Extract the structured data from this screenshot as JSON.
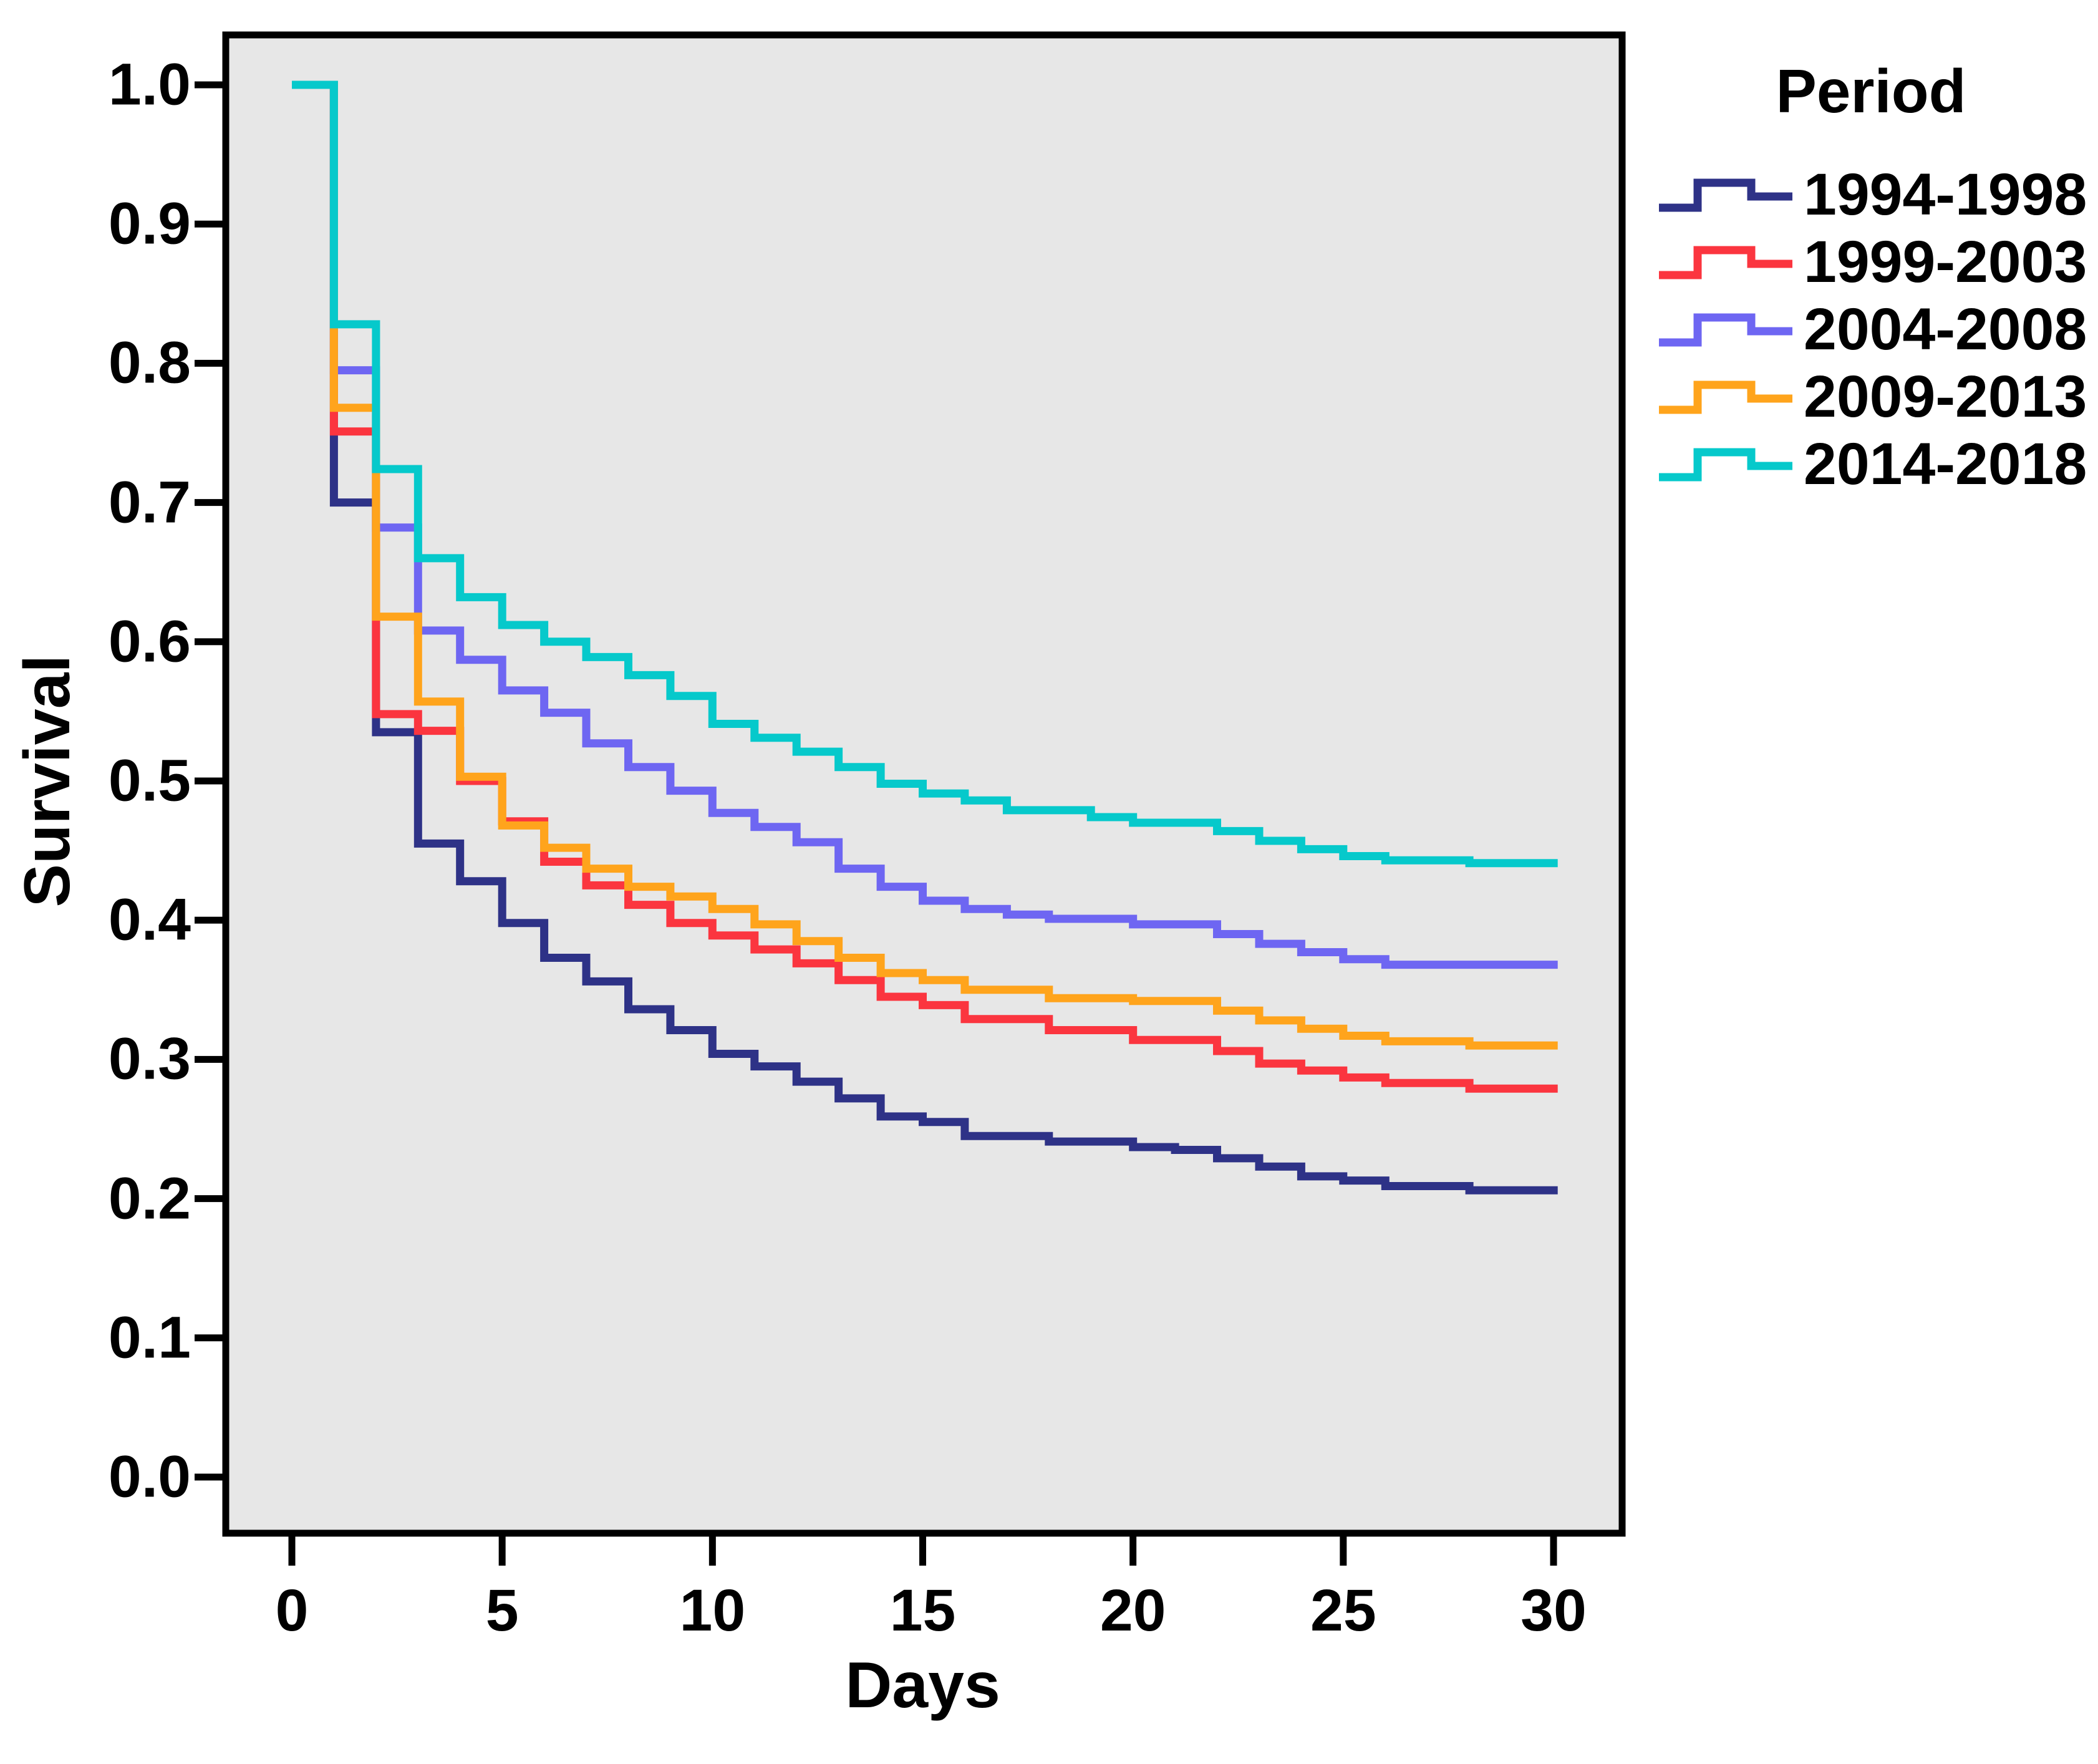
{
  "chart_data": {
    "type": "line",
    "subtype": "kaplan-meier-step",
    "title": "",
    "xlabel": "Days",
    "ylabel": "Survival",
    "legend_title": "Period",
    "legend_position": "outside-top-right",
    "grid": false,
    "plot_background": "#E7E7E7",
    "axis_color": "#000000",
    "xlim": [
      0,
      30
    ],
    "ylim": [
      0.0,
      1.0
    ],
    "x_ticks": [
      "0",
      "5",
      "10",
      "15",
      "20",
      "25",
      "30"
    ],
    "y_ticks": [
      "0.0",
      "0.1",
      "0.2",
      "0.3",
      "0.4",
      "0.5",
      "0.6",
      "0.7",
      "0.8",
      "0.9",
      "1.0"
    ],
    "curve_end_day": 30.1,
    "series": [
      {
        "name": "1994-1998",
        "color": "#2E3287",
        "points": [
          [
            0,
            1.0
          ],
          [
            1,
            0.7
          ],
          [
            2,
            0.535
          ],
          [
            3,
            0.455
          ],
          [
            4,
            0.428
          ],
          [
            5,
            0.398
          ],
          [
            6,
            0.373
          ],
          [
            7,
            0.356
          ],
          [
            8,
            0.336
          ],
          [
            9,
            0.321
          ],
          [
            10,
            0.304
          ],
          [
            11,
            0.295
          ],
          [
            12,
            0.284
          ],
          [
            13,
            0.272
          ],
          [
            14,
            0.259
          ],
          [
            15,
            0.255
          ],
          [
            16,
            0.245
          ],
          [
            18,
            0.241
          ],
          [
            20,
            0.237
          ],
          [
            21,
            0.235
          ],
          [
            22,
            0.229
          ],
          [
            23,
            0.223
          ],
          [
            24,
            0.216
          ],
          [
            25,
            0.213
          ],
          [
            26,
            0.209
          ],
          [
            28,
            0.206
          ]
        ]
      },
      {
        "name": "1999-2003",
        "color": "#FB353F",
        "points": [
          [
            0,
            1.0
          ],
          [
            1,
            0.751
          ],
          [
            2,
            0.548
          ],
          [
            3,
            0.536
          ],
          [
            4,
            0.5
          ],
          [
            5,
            0.471
          ],
          [
            6,
            0.442
          ],
          [
            7,
            0.425
          ],
          [
            8,
            0.411
          ],
          [
            9,
            0.398
          ],
          [
            10,
            0.389
          ],
          [
            11,
            0.379
          ],
          [
            12,
            0.369
          ],
          [
            13,
            0.357
          ],
          [
            14,
            0.345
          ],
          [
            15,
            0.339
          ],
          [
            16,
            0.329
          ],
          [
            18,
            0.321
          ],
          [
            20,
            0.314
          ],
          [
            22,
            0.306
          ],
          [
            23,
            0.297
          ],
          [
            24,
            0.292
          ],
          [
            25,
            0.287
          ],
          [
            26,
            0.283
          ],
          [
            28,
            0.279
          ]
        ]
      },
      {
        "name": "2004-2008",
        "color": "#6E66F2",
        "points": [
          [
            0,
            1.0
          ],
          [
            1,
            0.795
          ],
          [
            2,
            0.682
          ],
          [
            3,
            0.608
          ],
          [
            4,
            0.587
          ],
          [
            5,
            0.565
          ],
          [
            6,
            0.549
          ],
          [
            7,
            0.527
          ],
          [
            8,
            0.51
          ],
          [
            9,
            0.493
          ],
          [
            10,
            0.477
          ],
          [
            11,
            0.467
          ],
          [
            12,
            0.456
          ],
          [
            13,
            0.437
          ],
          [
            14,
            0.424
          ],
          [
            15,
            0.414
          ],
          [
            16,
            0.408
          ],
          [
            17,
            0.404
          ],
          [
            18,
            0.401
          ],
          [
            20,
            0.397
          ],
          [
            22,
            0.39
          ],
          [
            23,
            0.383
          ],
          [
            24,
            0.377
          ],
          [
            25,
            0.372
          ],
          [
            26,
            0.368
          ]
        ]
      },
      {
        "name": "2009-2013",
        "color": "#FFA41C",
        "points": [
          [
            0,
            1.0
          ],
          [
            1,
            0.768
          ],
          [
            2,
            0.618
          ],
          [
            3,
            0.557
          ],
          [
            4,
            0.503
          ],
          [
            5,
            0.468
          ],
          [
            6,
            0.452
          ],
          [
            7,
            0.437
          ],
          [
            8,
            0.424
          ],
          [
            9,
            0.417
          ],
          [
            10,
            0.408
          ],
          [
            11,
            0.397
          ],
          [
            12,
            0.385
          ],
          [
            13,
            0.373
          ],
          [
            14,
            0.362
          ],
          [
            15,
            0.357
          ],
          [
            16,
            0.35
          ],
          [
            18,
            0.344
          ],
          [
            20,
            0.342
          ],
          [
            22,
            0.335
          ],
          [
            23,
            0.328
          ],
          [
            24,
            0.322
          ],
          [
            25,
            0.317
          ],
          [
            26,
            0.313
          ],
          [
            28,
            0.31
          ]
        ]
      },
      {
        "name": "2014-2018",
        "color": "#06C9CB",
        "points": [
          [
            0,
            1.0
          ],
          [
            1,
            0.828
          ],
          [
            2,
            0.724
          ],
          [
            3,
            0.66
          ],
          [
            4,
            0.632
          ],
          [
            5,
            0.612
          ],
          [
            6,
            0.6
          ],
          [
            7,
            0.589
          ],
          [
            8,
            0.576
          ],
          [
            9,
            0.561
          ],
          [
            10,
            0.541
          ],
          [
            11,
            0.531
          ],
          [
            12,
            0.521
          ],
          [
            13,
            0.51
          ],
          [
            14,
            0.498
          ],
          [
            15,
            0.491
          ],
          [
            16,
            0.486
          ],
          [
            17,
            0.479
          ],
          [
            19,
            0.474
          ],
          [
            20,
            0.47
          ],
          [
            22,
            0.464
          ],
          [
            23,
            0.457
          ],
          [
            24,
            0.451
          ],
          [
            25,
            0.446
          ],
          [
            26,
            0.443
          ],
          [
            28,
            0.441
          ]
        ]
      }
    ]
  }
}
